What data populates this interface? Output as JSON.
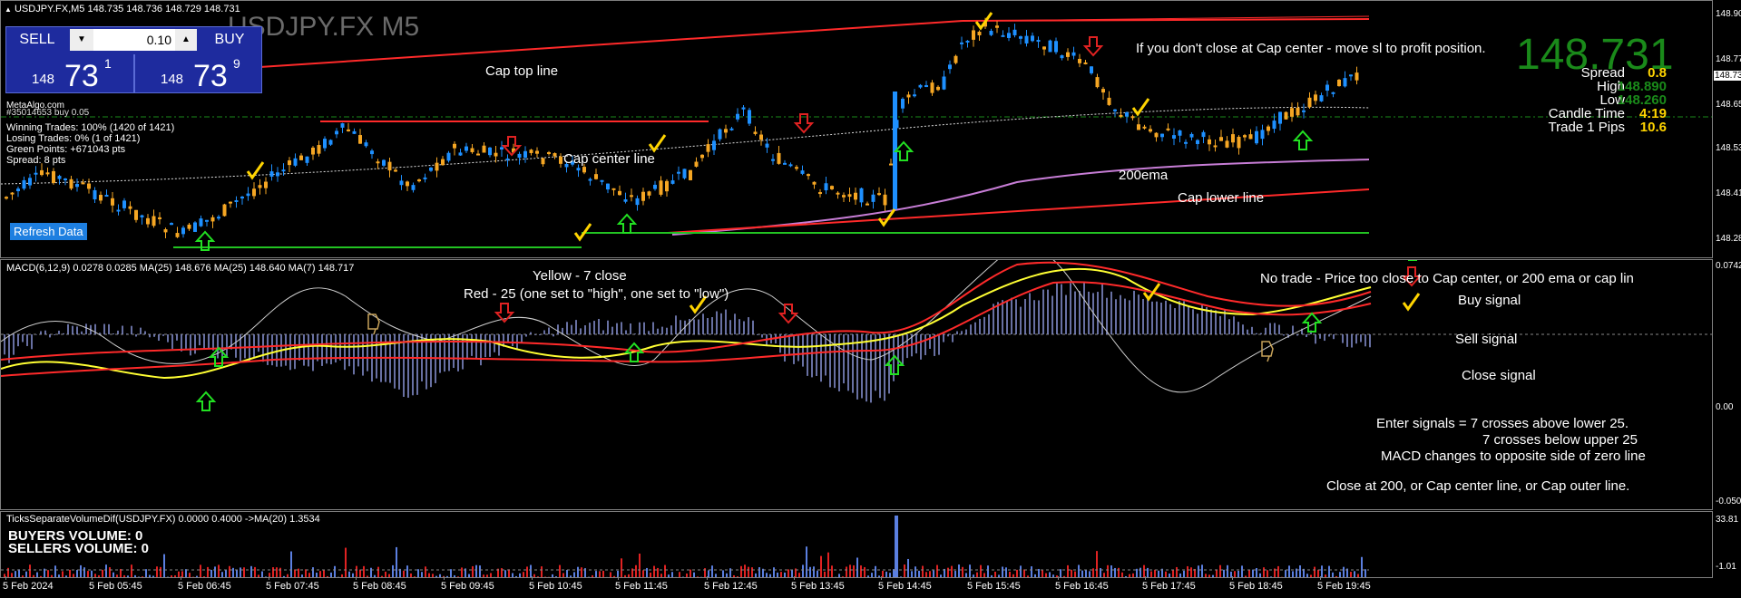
{
  "chart": {
    "symbol_line": "USDJPY.FX,M5  148.735 148.736 148.729 148.731",
    "watermark": "USDJPY.FX M5",
    "broker_label": "MetaAlgo.com",
    "order_label": "#35014653 buy 0.05",
    "stats": [
      "Winning Trades: 100% (1420 of 1421)",
      "Losing Trades: 0% (1 of 1421)",
      "Green Points: +671043 pts",
      "Spread: 8 pts"
    ],
    "refresh_label": "Refresh Data",
    "big_price": "148.731",
    "info_rows": [
      {
        "label": "Spread",
        "value": "0.8"
      },
      {
        "label": "High",
        "value": "148.890"
      },
      {
        "label": "Low",
        "value": "148.260"
      },
      {
        "label": "Candle Time",
        "value": "4:19"
      },
      {
        "label": "Trade 1 Pips",
        "value": "10.6"
      }
    ],
    "annotations": {
      "cap_top": "Cap top line",
      "cap_center": "Cap center line",
      "ema200": "200ema",
      "cap_lower": "Cap lower line",
      "advice": "If you don't close at Cap center - move sl to profit position."
    },
    "price_scale": [
      "148.900",
      "148.775",
      "148.655",
      "148.530",
      "148.410",
      "148.285"
    ],
    "current_price_tag": "148.731"
  },
  "trade_panel": {
    "sell_label": "SELL",
    "buy_label": "BUY",
    "lot_value": "0.10",
    "sell_price": {
      "prefix": "148",
      "big": "73",
      "sup": "1"
    },
    "buy_price": {
      "prefix": "148",
      "big": "73",
      "sup": "9"
    }
  },
  "macd": {
    "header": "MACD(6,12,9) 0.0278 0.0285  MA(25) 148.676  MA(25) 148.640  MA(7) 148.717",
    "legend_line1": "Yellow - 7 close",
    "legend_line2": "Red - 25 (one set to \"high\", one set to \"low\")",
    "no_trade": "No trade - Price too close to Cap center, or 200 ema or cap lin",
    "buy_signal": "Buy signal",
    "sell_signal": "Sell signal",
    "close_signal": "Close signal",
    "enter_lines": [
      "Enter signals = 7 crosses above lower 25.",
      "7 crosses below upper 25",
      "MACD changes to opposite side of zero line"
    ],
    "close_rule": "Close at 200, or Cap center line, or Cap outer line.",
    "scale": [
      "0.0742",
      "0.00",
      "-0.0504"
    ]
  },
  "volume": {
    "header": "TicksSeparateVolumeDif(USDJPY.FX) 0.0000 0.4000  ->MA(20) 1.3534",
    "buyers": "BUYERS VOLUME: 0",
    "sellers": "SELLERS VOLUME: 0",
    "scale": [
      "33.81",
      "-1.01"
    ]
  },
  "time_axis": [
    "5 Feb 2024",
    "5 Feb 05:45",
    "5 Feb 06:45",
    "5 Feb 07:45",
    "5 Feb 08:45",
    "5 Feb 09:45",
    "5 Feb 10:45",
    "5 Feb 11:45",
    "5 Feb 12:45",
    "5 Feb 13:45",
    "5 Feb 14:45",
    "5 Feb 15:45",
    "5 Feb 16:45",
    "5 Feb 17:45",
    "5 Feb 18:45",
    "5 Feb 19:45"
  ],
  "colors": {
    "bull": "#1e90ff",
    "bear": "#f5a623",
    "cap_line": "#ff2a2a",
    "ema": "#c77dd6",
    "green_line": "#22c322",
    "yellow_ma": "#ffff33",
    "check": "#ffd400",
    "price_text": "#1a8a1a"
  }
}
